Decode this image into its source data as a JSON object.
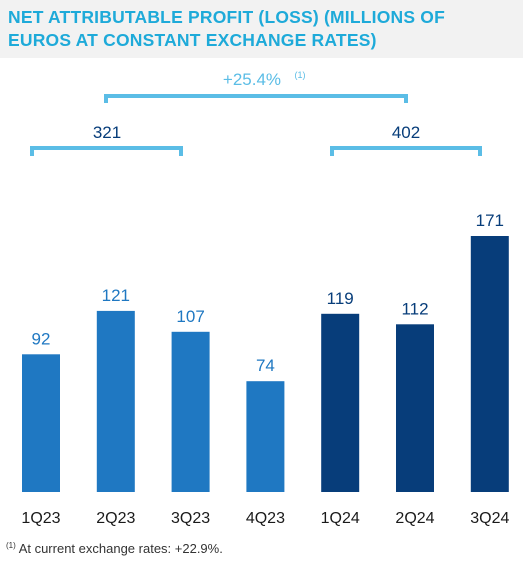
{
  "title_lines": [
    "NET ATTRIBUTABLE PROFIT (LOSS) (MILLIONS OF",
    "EUROS AT CONSTANT EXCHANGE RATES)"
  ],
  "colors": {
    "title": "#1eaad9",
    "bar_2023": "#1f78c2",
    "bar_2024": "#073d7a",
    "bracket": "#5bbde6",
    "bracket_text_growth": "#5bbde6",
    "value_2023": "#1f78c2",
    "value_2024": "#073d7a"
  },
  "annotations": {
    "growth_label": "+25.4%",
    "growth_note_ref": "(1)",
    "total_2023": "321",
    "total_2024": "402"
  },
  "footnote": {
    "ref": "(1)",
    "text": "At current exchange rates: +22.9%."
  },
  "chart_data": {
    "type": "bar",
    "title": "NET ATTRIBUTABLE PROFIT (LOSS) (MILLIONS OF EUROS AT CONSTANT EXCHANGE RATES)",
    "categories": [
      "1Q23",
      "2Q23",
      "3Q23",
      "4Q23",
      "1Q24",
      "2Q24",
      "3Q24"
    ],
    "values": [
      92,
      121,
      107,
      74,
      119,
      112,
      171
    ],
    "groups": [
      "2023",
      "2023",
      "2023",
      "2023",
      "2024",
      "2024",
      "2024"
    ],
    "data_labels": [
      "92",
      "121",
      "107",
      "74",
      "119",
      "112",
      "171"
    ],
    "xlabel": "",
    "ylabel": "",
    "ylim": [
      0,
      171
    ],
    "grid": false
  }
}
